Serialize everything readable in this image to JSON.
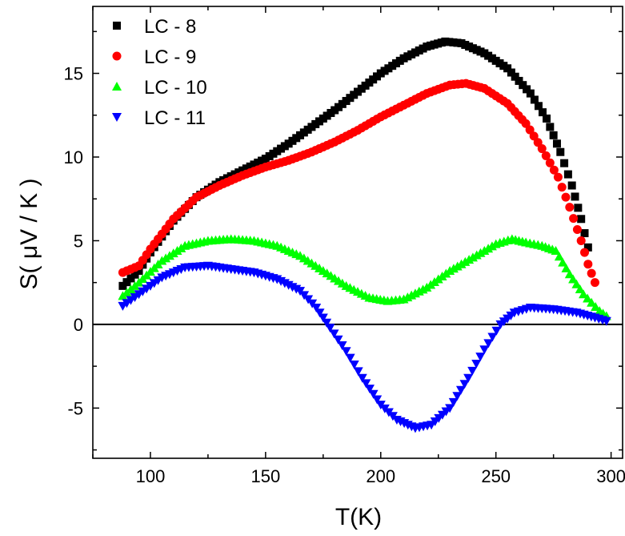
{
  "chart_data": {
    "type": "scatter",
    "xlabel": "T(K)",
    "ylabel": "S( μV / K )",
    "xlim": [
      75,
      305
    ],
    "ylim": [
      -8,
      19
    ],
    "x_ticks": [
      100,
      150,
      200,
      250,
      300
    ],
    "y_ticks": [
      -5,
      0,
      5,
      10,
      15
    ],
    "zero_line": true,
    "grid": false,
    "legend_position": "top-left",
    "series": [
      {
        "name": "LC - 8",
        "color": "#000000",
        "marker": "square",
        "points": [
          [
            88,
            2.3
          ],
          [
            95,
            3.2
          ],
          [
            100,
            4.3
          ],
          [
            110,
            6.2
          ],
          [
            120,
            7.6
          ],
          [
            130,
            8.5
          ],
          [
            140,
            9.2
          ],
          [
            150,
            9.9
          ],
          [
            160,
            10.8
          ],
          [
            170,
            11.8
          ],
          [
            180,
            12.8
          ],
          [
            190,
            13.9
          ],
          [
            200,
            15.0
          ],
          [
            210,
            15.9
          ],
          [
            220,
            16.6
          ],
          [
            228,
            16.9
          ],
          [
            235,
            16.8
          ],
          [
            245,
            16.2
          ],
          [
            255,
            15.3
          ],
          [
            265,
            13.8
          ],
          [
            272,
            12.3
          ],
          [
            278,
            10.3
          ],
          [
            283,
            8.3
          ],
          [
            287,
            6.3
          ],
          [
            290,
            4.6
          ]
        ]
      },
      {
        "name": "LC - 9",
        "color": "#ff0000",
        "marker": "circle",
        "points": [
          [
            88,
            3.1
          ],
          [
            95,
            3.5
          ],
          [
            100,
            4.5
          ],
          [
            110,
            6.3
          ],
          [
            120,
            7.6
          ],
          [
            130,
            8.3
          ],
          [
            140,
            8.9
          ],
          [
            150,
            9.4
          ],
          [
            160,
            9.8
          ],
          [
            170,
            10.3
          ],
          [
            180,
            10.9
          ],
          [
            190,
            11.6
          ],
          [
            200,
            12.4
          ],
          [
            210,
            13.1
          ],
          [
            220,
            13.8
          ],
          [
            230,
            14.3
          ],
          [
            237,
            14.4
          ],
          [
            245,
            14.1
          ],
          [
            255,
            13.2
          ],
          [
            263,
            12.0
          ],
          [
            270,
            10.5
          ],
          [
            277,
            8.8
          ],
          [
            282,
            7.0
          ],
          [
            287,
            5.0
          ],
          [
            290,
            3.6
          ],
          [
            293,
            2.5
          ]
        ]
      },
      {
        "name": "LC - 10",
        "color": "#00ff00",
        "marker": "triangle-up",
        "points": [
          [
            88,
            1.7
          ],
          [
            95,
            2.5
          ],
          [
            105,
            3.8
          ],
          [
            115,
            4.7
          ],
          [
            125,
            5.0
          ],
          [
            135,
            5.1
          ],
          [
            145,
            5.0
          ],
          [
            155,
            4.7
          ],
          [
            165,
            4.1
          ],
          [
            175,
            3.2
          ],
          [
            185,
            2.3
          ],
          [
            195,
            1.6
          ],
          [
            203,
            1.4
          ],
          [
            210,
            1.5
          ],
          [
            220,
            2.2
          ],
          [
            230,
            3.2
          ],
          [
            240,
            4.0
          ],
          [
            250,
            4.8
          ],
          [
            257,
            5.1
          ],
          [
            263,
            4.9
          ],
          [
            270,
            4.7
          ],
          [
            276,
            4.4
          ],
          [
            282,
            3.0
          ],
          [
            288,
            1.8
          ],
          [
            295,
            0.8
          ],
          [
            298,
            0.5
          ]
        ]
      },
      {
        "name": "LC - 11",
        "color": "#0000ff",
        "marker": "triangle-down",
        "points": [
          [
            88,
            1.1
          ],
          [
            95,
            1.8
          ],
          [
            105,
            2.8
          ],
          [
            115,
            3.4
          ],
          [
            125,
            3.5
          ],
          [
            135,
            3.3
          ],
          [
            145,
            3.1
          ],
          [
            155,
            2.7
          ],
          [
            165,
            2.0
          ],
          [
            172,
            1.0
          ],
          [
            178,
            -0.2
          ],
          [
            185,
            -1.6
          ],
          [
            192,
            -3.2
          ],
          [
            200,
            -4.8
          ],
          [
            207,
            -5.7
          ],
          [
            215,
            -6.2
          ],
          [
            222,
            -6.0
          ],
          [
            230,
            -5.0
          ],
          [
            238,
            -3.2
          ],
          [
            245,
            -1.5
          ],
          [
            252,
            0.0
          ],
          [
            258,
            0.7
          ],
          [
            265,
            1.0
          ],
          [
            275,
            0.9
          ],
          [
            285,
            0.7
          ],
          [
            293,
            0.4
          ],
          [
            298,
            0.2
          ]
        ]
      }
    ]
  }
}
